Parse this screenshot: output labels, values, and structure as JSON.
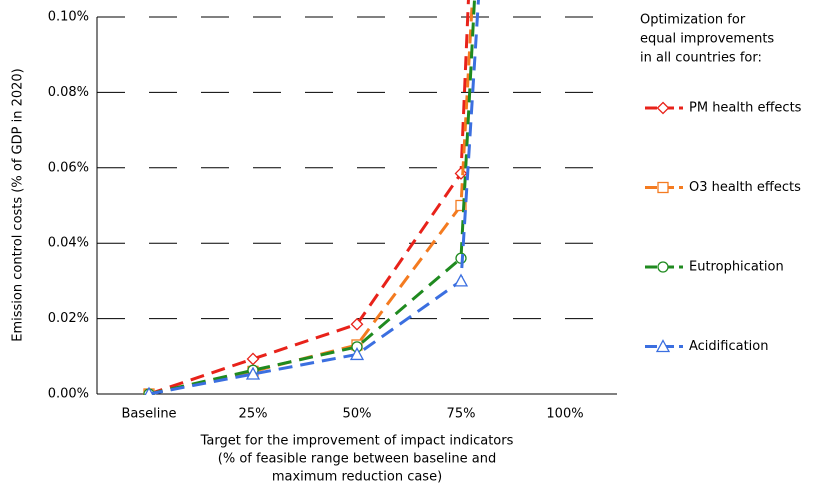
{
  "chart_data": {
    "type": "line",
    "y_label": "Emission control costs (% of GDP in 2020)",
    "x_label_lines": [
      "Target for the improvement of impact indicators",
      "(% of feasible range between baseline and",
      "maximum reduction case)"
    ],
    "legend_title_lines": [
      "Optimization for",
      "equal improvements",
      "in all countries for:"
    ],
    "xlim": [
      -12.5,
      112.5
    ],
    "xticks": [
      {
        "value": 0,
        "label": "Baseline"
      },
      {
        "value": 25,
        "label": "25%"
      },
      {
        "value": 50,
        "label": "50%"
      },
      {
        "value": 75,
        "label": "75%"
      },
      {
        "value": 100,
        "label": "100%"
      }
    ],
    "ylim": [
      0,
      0.1
    ],
    "yticks": [
      {
        "value": 0,
        "label": "0.00%"
      },
      {
        "value": 0.02,
        "label": "0.02%"
      },
      {
        "value": 0.04,
        "label": "0.04%"
      },
      {
        "value": 0.06,
        "label": "0.06%"
      },
      {
        "value": 0.08,
        "label": "0.08%"
      },
      {
        "value": 0.1,
        "label": "0.10%"
      }
    ],
    "grid": true,
    "legend": "right",
    "series": [
      {
        "name": "PM health effects",
        "color": "#e8221a",
        "marker": "diamond",
        "x": [
          0,
          25,
          50,
          75,
          77
        ],
        "values": [
          0,
          0.0093,
          0.0185,
          0.0585,
          0.11
        ]
      },
      {
        "name": "O3 health effects",
        "color": "#f47b20",
        "marker": "square",
        "x": [
          0,
          25,
          50,
          75,
          78
        ],
        "values": [
          0,
          0.006,
          0.013,
          0.05,
          0.11
        ]
      },
      {
        "name": "Eutrophication",
        "color": "#1f8a1f",
        "marker": "circle",
        "x": [
          0,
          25,
          50,
          75,
          78.5
        ],
        "values": [
          0,
          0.0063,
          0.0125,
          0.036,
          0.11
        ]
      },
      {
        "name": "Acidification",
        "color": "#3b6fe0",
        "marker": "triangle",
        "x": [
          0,
          25,
          50,
          75,
          79.5
        ],
        "values": [
          0,
          0.0053,
          0.0105,
          0.03,
          0.11
        ]
      }
    ]
  }
}
